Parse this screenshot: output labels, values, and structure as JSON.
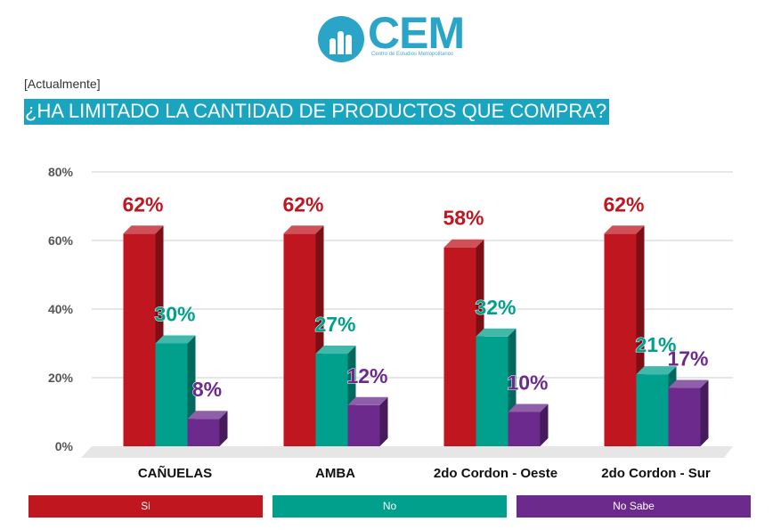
{
  "logo": {
    "text": "CEM",
    "subtitle": "Centro de Estudios Metropolitanos",
    "color": "#2aa5c8"
  },
  "context_label": "[Actualmente]",
  "question": "¿HA LIMITADO LA CANTIDAD DE PRODUCTOS QUE COMPRA?",
  "chart_data": {
    "type": "bar",
    "categories": [
      "CAÑUELAS",
      "AMBA",
      "2do Cordon - Oeste",
      "2do Cordon - Sur"
    ],
    "series": [
      {
        "name": "Si",
        "color": "#c0161f",
        "values": [
          62,
          62,
          58,
          62
        ],
        "labels": [
          "62%",
          "62%",
          "58%",
          "62%"
        ]
      },
      {
        "name": "No",
        "color": "#00a08d",
        "values": [
          30,
          27,
          32,
          21
        ],
        "labels": [
          "30%",
          "27%",
          "32%",
          "21%"
        ]
      },
      {
        "name": "No Sabe",
        "color": "#6b2a8c",
        "values": [
          8,
          12,
          10,
          17
        ],
        "labels": [
          "8%",
          "12%",
          "10%",
          "17%"
        ]
      }
    ],
    "y_ticks": [
      "0%",
      "20%",
      "40%",
      "60%",
      "80%"
    ],
    "ylim": [
      0,
      80
    ],
    "grid": true,
    "legend_position": "bottom"
  }
}
